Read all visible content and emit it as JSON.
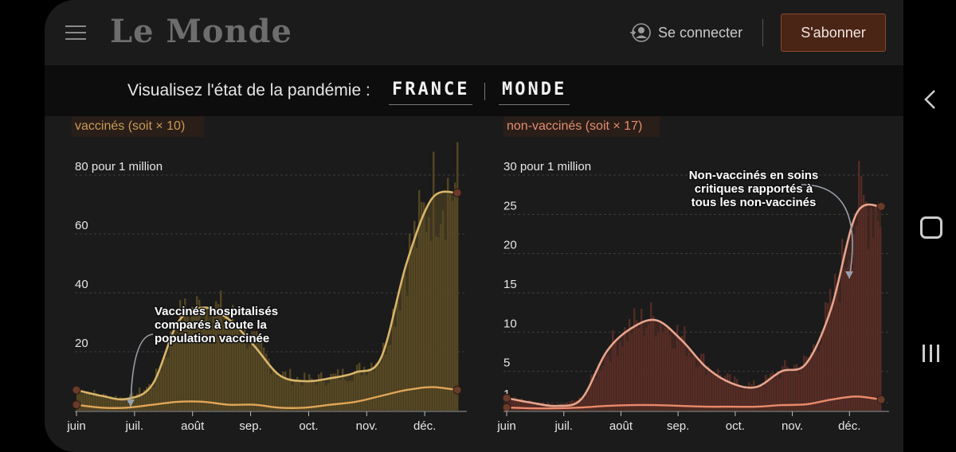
{
  "header": {
    "logo_text": "Le Monde",
    "login_label": "Se connecter",
    "subscribe_label": "S'abonner"
  },
  "pandemic_nav": {
    "label": "Visualisez l'état de la pandémie :",
    "tabs": [
      "FRANCE",
      "MONDE"
    ]
  },
  "colors": {
    "vaccinated": "#d9b56a",
    "vaccinated_area": "#5a4a24",
    "unvaccinated": "#e8a58c",
    "unvaccinated_area": "#5a2e26",
    "lower_line_vac": "#e0a65a",
    "lower_line_unvac": "#e98a6a"
  },
  "chart_data": [
    {
      "type": "area",
      "title": "vaccinés (soit × 10)",
      "months": [
        "juin",
        "juil.",
        "août",
        "sep.",
        "oct.",
        "nov.",
        "déc."
      ],
      "y_ticks": [
        "80 pour 1 million",
        "60",
        "40",
        "20"
      ],
      "ylim": [
        0,
        80
      ],
      "annotation": "Vaccinés hospitalisés comparés à toute la population vaccinée",
      "series": [
        {
          "values": [
            7,
            5,
            4,
            9,
            30,
            35,
            31,
            22,
            12,
            10,
            11,
            13,
            18,
            50,
            72,
            74
          ]
        },
        {
          "values": [
            2,
            1,
            1,
            2,
            3,
            3,
            2,
            2,
            1,
            1,
            2,
            3,
            5,
            7,
            8,
            7
          ]
        }
      ]
    },
    {
      "type": "area",
      "title": "non-vaccinés (soit × 17)",
      "months": [
        "juin",
        "juil.",
        "août",
        "sep.",
        "oct.",
        "nov.",
        "déc."
      ],
      "y_ticks": [
        "30 pour 1 million",
        "25",
        "20",
        "15",
        "10",
        "5",
        "1"
      ],
      "ylim": [
        0,
        30
      ],
      "annotation": "Non-vaccinés en soins critiques rapportés à tous les non-vaccinés",
      "series": [
        {
          "values": [
            1.6,
            1.0,
            0.6,
            1.5,
            7.5,
            10.5,
            11.5,
            9.0,
            5.5,
            3.5,
            3.0,
            5.0,
            6.0,
            13.0,
            25.0,
            26.0
          ]
        },
        {
          "values": [
            0.4,
            0.3,
            0.3,
            0.4,
            0.6,
            0.7,
            0.7,
            0.6,
            0.5,
            0.5,
            0.5,
            0.7,
            0.8,
            1.4,
            1.8,
            1.4
          ]
        }
      ]
    }
  ]
}
